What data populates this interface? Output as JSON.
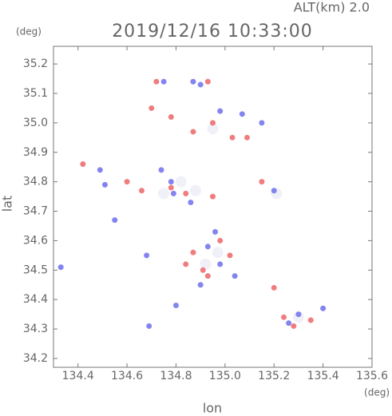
{
  "chart_data": {
    "type": "scatter",
    "title": "2019/12/16 10:33:00",
    "subtitle": "ALT(km) 2.0",
    "y_unit": "(deg)",
    "x_unit": "(deg)",
    "x_label": "lon",
    "y_label": "lat",
    "xlim": [
      134.3,
      135.6
    ],
    "ylim": [
      34.17,
      35.26
    ],
    "xticks": [
      134.4,
      134.6,
      134.8,
      {
        "value": 135,
        "label": "135.0"
      },
      135.2,
      135.4,
      135.6
    ],
    "yticks": [
      34.2,
      34.3,
      34.4,
      34.5,
      34.6,
      34.7,
      34.8,
      34.9,
      {
        "value": 35,
        "label": "35.0"
      },
      35.1,
      35.2
    ],
    "series": [
      {
        "color": "#eeeef8",
        "x": [
          134.75,
          134.92,
          135.3,
          134.95,
          134.88,
          135.21,
          134.82,
          134.97
        ],
        "values": [
          34.76,
          34.52,
          34.34,
          34.98,
          34.77,
          34.76,
          34.8,
          34.56
        ]
      },
      {
        "color": "#7777ee",
        "x": [
          134.33,
          134.69,
          134.49,
          134.51,
          134.75,
          134.87,
          134.9,
          134.98,
          135.07,
          135.15,
          134.74,
          134.78,
          134.79,
          134.86,
          134.96,
          134.93,
          134.98,
          135.26,
          135.3,
          135.4,
          135.2,
          134.55,
          134.68,
          134.9,
          135.04,
          134.8
        ],
        "values": [
          34.51,
          34.31,
          34.84,
          34.79,
          35.14,
          35.14,
          35.13,
          35.04,
          35.03,
          35.0,
          34.84,
          34.8,
          34.76,
          34.73,
          34.63,
          34.58,
          34.52,
          34.32,
          34.35,
          34.37,
          34.77,
          34.67,
          34.55,
          34.45,
          34.48,
          34.38
        ]
      },
      {
        "color": "#ee6f6f",
        "x": [
          134.42,
          134.72,
          134.7,
          134.78,
          134.93,
          134.95,
          135.03,
          135.09,
          134.87,
          134.78,
          134.84,
          134.66,
          134.95,
          134.98,
          134.87,
          134.91,
          134.84,
          135.2,
          135.24,
          135.28,
          135.35,
          134.6,
          135.15,
          134.93,
          135.02
        ],
        "values": [
          34.86,
          35.14,
          35.05,
          35.02,
          35.14,
          35.0,
          34.95,
          34.95,
          34.97,
          34.78,
          34.76,
          34.77,
          34.75,
          34.6,
          34.56,
          34.5,
          34.52,
          34.44,
          34.34,
          34.31,
          34.33,
          34.8,
          34.8,
          34.48,
          34.55
        ]
      }
    ]
  }
}
